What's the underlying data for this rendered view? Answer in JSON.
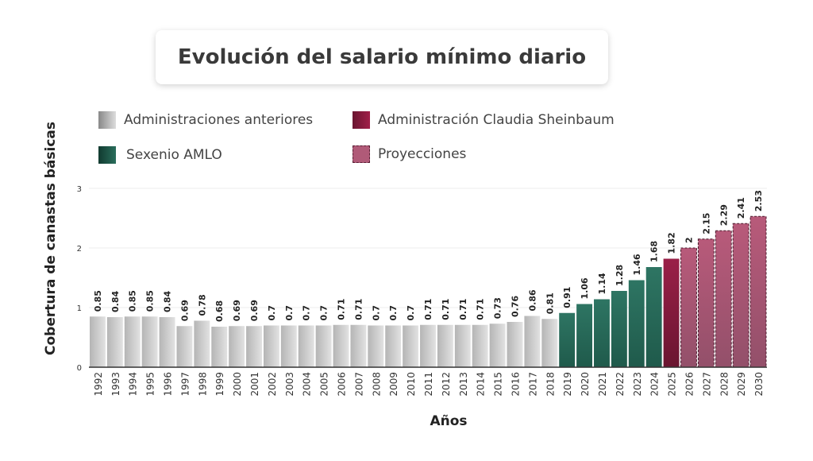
{
  "chart_data": {
    "type": "bar",
    "title": "Evolución del salario mínimo diario",
    "xlabel": "Años",
    "ylabel": "Cobertura de canastas básicas",
    "ylim": [
      0,
      3
    ],
    "yticks": [
      "0",
      "1",
      "2",
      "3"
    ],
    "grid": true,
    "legend_position": "top",
    "categories": [
      "1992",
      "1993",
      "1994",
      "1995",
      "1996",
      "1997",
      "1998",
      "1999",
      "2000",
      "2001",
      "2002",
      "2003",
      "2004",
      "2005",
      "2006",
      "2007",
      "2008",
      "2009",
      "2010",
      "2011",
      "2012",
      "2013",
      "2014",
      "2015",
      "2016",
      "2017",
      "2018",
      "2019",
      "2020",
      "2021",
      "2022",
      "2023",
      "2024",
      "2025",
      "2026",
      "2027",
      "2028",
      "2029",
      "2030"
    ],
    "values": [
      0.85,
      0.84,
      0.85,
      0.85,
      0.84,
      0.69,
      0.78,
      0.68,
      0.69,
      0.69,
      0.7,
      0.7,
      0.7,
      0.7,
      0.71,
      0.71,
      0.7,
      0.7,
      0.7,
      0.71,
      0.71,
      0.71,
      0.71,
      0.73,
      0.76,
      0.86,
      0.81,
      0.91,
      1.06,
      1.14,
      1.28,
      1.46,
      1.68,
      1.82,
      2,
      2.15,
      2.29,
      2.41,
      2.53
    ],
    "groups": [
      "prev",
      "prev",
      "prev",
      "prev",
      "prev",
      "prev",
      "prev",
      "prev",
      "prev",
      "prev",
      "prev",
      "prev",
      "prev",
      "prev",
      "prev",
      "prev",
      "prev",
      "prev",
      "prev",
      "prev",
      "prev",
      "prev",
      "prev",
      "prev",
      "prev",
      "prev",
      "prev",
      "amlo",
      "amlo",
      "amlo",
      "amlo",
      "amlo",
      "amlo",
      "cs",
      "proj",
      "proj",
      "proj",
      "proj",
      "proj"
    ],
    "legend": [
      {
        "key": "prev",
        "label": "Administraciones anteriores",
        "color": "#c9c9c9"
      },
      {
        "key": "cs",
        "label": "Administración Claudia Sheinbaum",
        "color": "#8a1d3f"
      },
      {
        "key": "amlo",
        "label": "Sexenio AMLO",
        "color": "#2a6e5c"
      },
      {
        "key": "proj",
        "label": "Proyecciones",
        "color": "#b05a78"
      }
    ]
  }
}
